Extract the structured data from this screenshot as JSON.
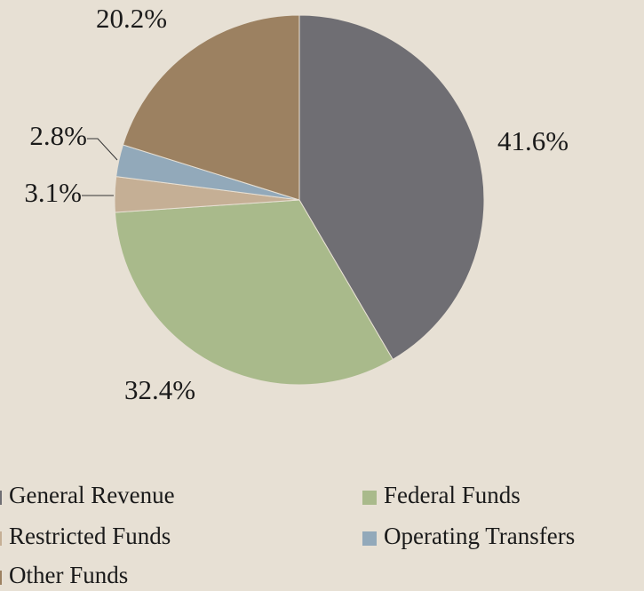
{
  "chart_data": {
    "type": "pie",
    "categories": [
      "General Revenue",
      "Federal Funds",
      "Restricted Funds",
      "Operating Transfers",
      "Other Funds"
    ],
    "values": [
      41.6,
      32.4,
      3.1,
      2.8,
      20.2
    ],
    "value_labels": [
      "41.6%",
      "32.4%",
      "3.1%",
      "2.8%",
      "20.2%"
    ],
    "colors": [
      "#6f6e73",
      "#a9ba8b",
      "#c5af95",
      "#92a9ba",
      "#9c8161"
    ]
  }
}
